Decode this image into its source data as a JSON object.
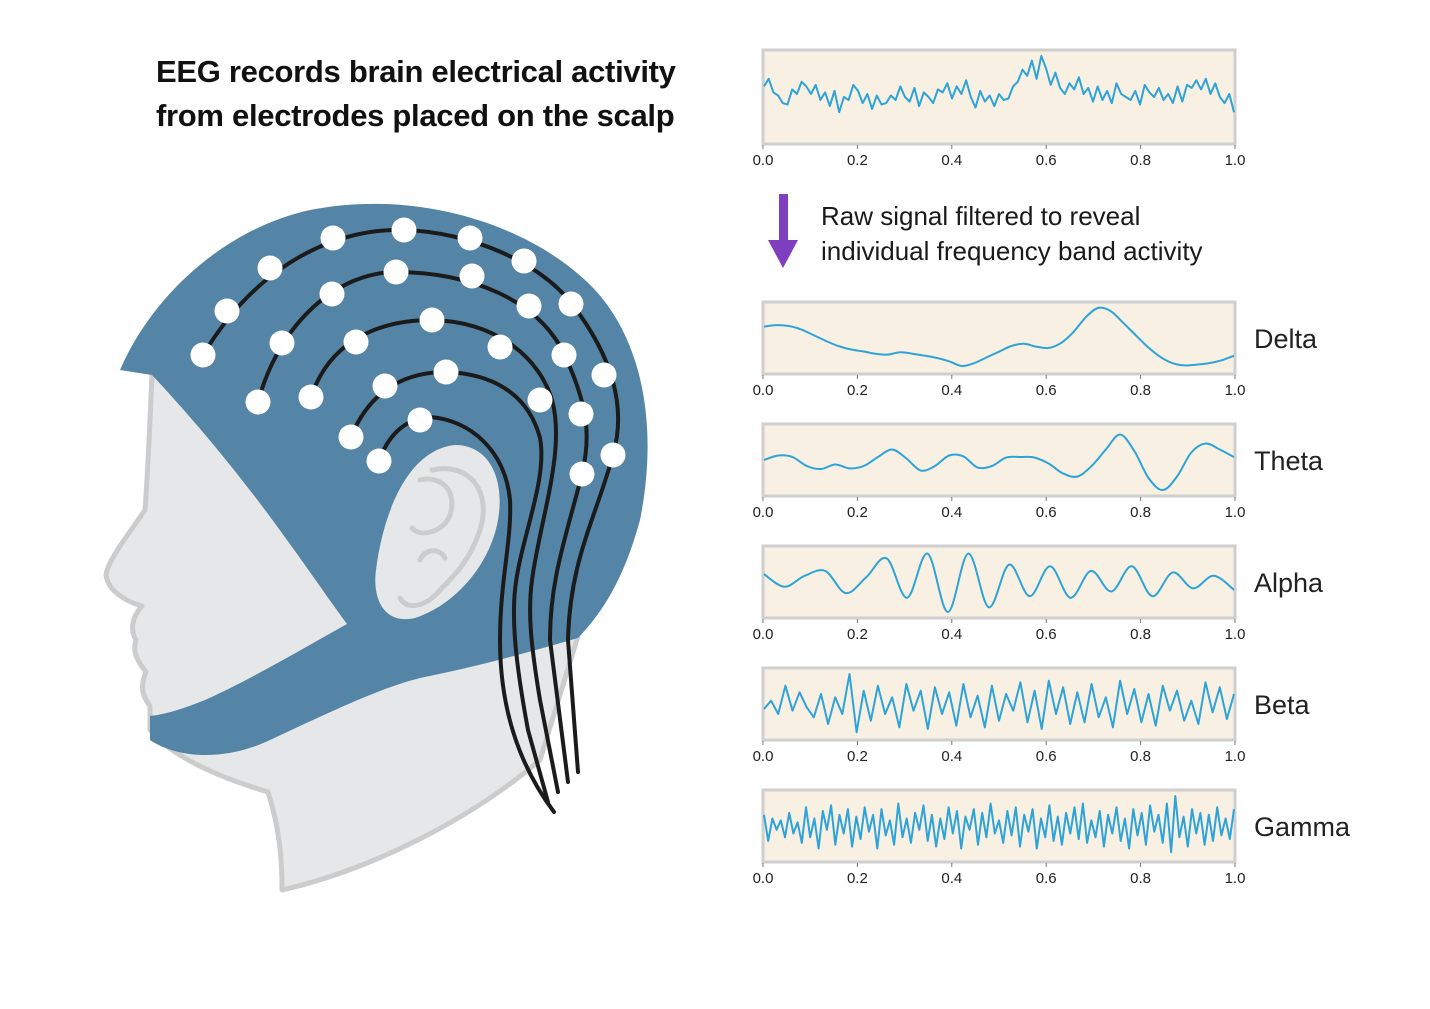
{
  "title_lines": [
    "EEG records brain electrical activity",
    "from electrodes placed on the scalp"
  ],
  "filter_note_lines": [
    "Raw signal filtered to reveal",
    "individual frequency band activity"
  ],
  "colors": {
    "cap": "#5585a6",
    "head": "#e6e7e8",
    "head_outline": "#cccccc",
    "electrode": "#ffffff",
    "wire": "#1b1b1b",
    "signal": "#2ea3d8",
    "panel_bg": "#f8f0e3",
    "panel_border": "#cfcfcf",
    "arrow": "#7f3fbf"
  },
  "icons": [
    "human-head-profile",
    "eeg-cap",
    "electrode",
    "ear",
    "down-arrow"
  ],
  "chart_data": [
    {
      "type": "line",
      "name": "raw",
      "label": "",
      "xlim": [
        0.0,
        1.0
      ],
      "x_ticks": [
        "0.0",
        "0.2",
        "0.4",
        "0.6",
        "0.8",
        "1.0"
      ],
      "y": [
        0.35,
        0.6,
        0.15,
        0.05,
        -0.2,
        -0.25,
        0.25,
        0.1,
        0.5,
        0.35,
        0.1,
        0.4,
        -0.1,
        0.15,
        -0.3,
        0.2,
        -0.5,
        0.0,
        -0.1,
        0.4,
        0.2,
        -0.2,
        0.1,
        -0.4,
        0.05,
        -0.25,
        -0.2,
        0.05,
        -0.1,
        0.35,
        0.0,
        -0.15,
        0.3,
        -0.3,
        0.15,
        0.0,
        -0.2,
        0.25,
        0.15,
        0.45,
        -0.05,
        0.35,
        0.1,
        0.55,
        0.0,
        -0.35,
        0.2,
        -0.15,
        0.05,
        -0.3,
        0.1,
        -0.1,
        -0.05,
        0.35,
        0.5,
        0.9,
        0.7,
        1.2,
        0.6,
        1.35,
        0.95,
        0.4,
        0.8,
        0.3,
        0.1,
        0.45,
        0.25,
        0.65,
        0.1,
        0.3,
        -0.15,
        0.35,
        -0.1,
        0.2,
        -0.2,
        0.45,
        0.1,
        0.0,
        -0.1,
        0.2,
        -0.25,
        0.4,
        0.15,
        0.0,
        0.3,
        -0.1,
        0.1,
        -0.2,
        0.35,
        -0.15,
        0.4,
        0.3,
        0.55,
        0.25,
        0.6,
        0.1,
        0.45,
        0.0,
        -0.2,
        0.1,
        -0.5
      ]
    },
    {
      "type": "line",
      "name": "delta",
      "label": "Delta",
      "xlim": [
        0.0,
        1.0
      ],
      "x_ticks": [
        "0.0",
        "0.2",
        "0.4",
        "0.6",
        "0.8",
        "1.0"
      ],
      "y": [
        0.4,
        0.45,
        0.42,
        0.3,
        0.1,
        -0.1,
        -0.28,
        -0.4,
        -0.47,
        -0.55,
        -0.58,
        -0.5,
        -0.55,
        -0.62,
        -0.7,
        -0.82,
        -0.98,
        -0.88,
        -0.68,
        -0.48,
        -0.28,
        -0.2,
        -0.3,
        -0.35,
        -0.18,
        0.2,
        0.72,
        1.05,
        0.95,
        0.55,
        0.12,
        -0.3,
        -0.65,
        -0.88,
        -0.96,
        -0.93,
        -0.88,
        -0.78,
        -0.62
      ]
    },
    {
      "type": "line",
      "name": "theta",
      "label": "Theta",
      "xlim": [
        0.0,
        1.0
      ],
      "x_ticks": [
        "0.0",
        "0.2",
        "0.4",
        "0.6",
        "0.8",
        "1.0"
      ],
      "y": [
        0.0,
        0.15,
        0.1,
        -0.2,
        -0.3,
        -0.15,
        -0.28,
        -0.2,
        0.1,
        0.35,
        0.05,
        -0.35,
        -0.2,
        0.15,
        0.12,
        -0.25,
        -0.2,
        0.08,
        0.1,
        0.08,
        -0.12,
        -0.45,
        -0.55,
        -0.2,
        0.35,
        0.85,
        0.3,
        -0.6,
        -1.0,
        -0.55,
        0.25,
        0.55,
        0.35,
        0.1
      ]
    },
    {
      "type": "line",
      "name": "alpha",
      "label": "Alpha",
      "xlim": [
        0.0,
        1.0
      ],
      "x_ticks": [
        "0.0",
        "0.2",
        "0.4",
        "0.6",
        "0.8",
        "1.0"
      ],
      "y": [
        0.25,
        -0.15,
        0.2,
        0.35,
        -0.35,
        0.15,
        0.75,
        -0.5,
        0.9,
        -0.95,
        0.9,
        -0.8,
        0.55,
        -0.45,
        0.5,
        -0.5,
        0.35,
        -0.3,
        0.5,
        -0.45,
        0.3,
        -0.2,
        0.2,
        -0.25
      ]
    },
    {
      "type": "line",
      "name": "beta",
      "label": "Beta",
      "xlim": [
        0.0,
        1.0
      ],
      "x_ticks": [
        "0.0",
        "0.2",
        "0.4",
        "0.6",
        "0.8",
        "1.0"
      ],
      "y": [
        -0.15,
        0.1,
        -0.3,
        0.55,
        -0.2,
        0.35,
        -0.1,
        -0.4,
        0.3,
        -0.6,
        0.2,
        -0.3,
        0.9,
        -0.85,
        0.4,
        -0.5,
        0.55,
        -0.3,
        0.2,
        -0.7,
        0.6,
        -0.2,
        0.4,
        -0.75,
        0.5,
        -0.3,
        0.35,
        -0.65,
        0.6,
        -0.4,
        0.25,
        -0.7,
        0.55,
        -0.5,
        0.3,
        -0.2,
        0.65,
        -0.55,
        0.4,
        -0.75,
        0.7,
        -0.3,
        0.5,
        -0.6,
        0.35,
        -0.55,
        0.6,
        -0.4,
        0.2,
        -0.7,
        0.7,
        -0.3,
        0.45,
        -0.55,
        0.3,
        -0.65,
        0.55,
        -0.2,
        0.4,
        -0.5,
        0.1,
        -0.6,
        0.65,
        -0.25,
        0.5,
        -0.45,
        0.3
      ]
    },
    {
      "type": "line",
      "name": "gamma",
      "label": "Gamma",
      "xlim": [
        0.0,
        1.0
      ],
      "x_ticks": [
        "0.0",
        "0.2",
        "0.4",
        "0.6",
        "0.8",
        "1.0"
      ],
      "y": [
        0.3,
        -0.4,
        0.2,
        -0.1,
        0.15,
        -0.3,
        0.35,
        -0.2,
        0.1,
        -0.45,
        0.5,
        -0.3,
        0.2,
        -0.6,
        0.4,
        -0.1,
        0.55,
        -0.5,
        0.3,
        -0.2,
        0.45,
        -0.55,
        0.25,
        -0.35,
        0.5,
        -0.15,
        0.3,
        -0.6,
        0.45,
        -0.25,
        0.15,
        -0.5,
        0.6,
        -0.3,
        0.2,
        -0.45,
        0.35,
        -0.1,
        0.55,
        -0.4,
        0.3,
        -0.55,
        0.2,
        -0.35,
        0.5,
        -0.2,
        0.4,
        -0.6,
        0.25,
        -0.1,
        0.45,
        -0.5,
        0.35,
        -0.3,
        0.6,
        -0.2,
        0.15,
        -0.45,
        0.4,
        -0.25,
        0.5,
        -0.55,
        0.3,
        -0.15,
        0.45,
        -0.6,
        0.2,
        -0.3,
        0.55,
        -0.4,
        0.25,
        -0.5,
        0.35,
        -0.2,
        0.5,
        -0.35,
        0.6,
        -0.45,
        0.15,
        -0.3,
        0.4,
        -0.55,
        0.3,
        -0.2,
        0.5,
        -0.4,
        0.2,
        -0.6,
        0.45,
        -0.25,
        0.35,
        -0.5,
        0.55,
        -0.15,
        0.3,
        -0.45,
        0.6,
        -0.7,
        0.8,
        -0.3,
        0.25,
        -0.55,
        0.45,
        -0.2,
        0.35,
        -0.5,
        0.3,
        -0.4,
        0.5,
        -0.25,
        0.2,
        -0.35,
        0.45
      ]
    }
  ]
}
